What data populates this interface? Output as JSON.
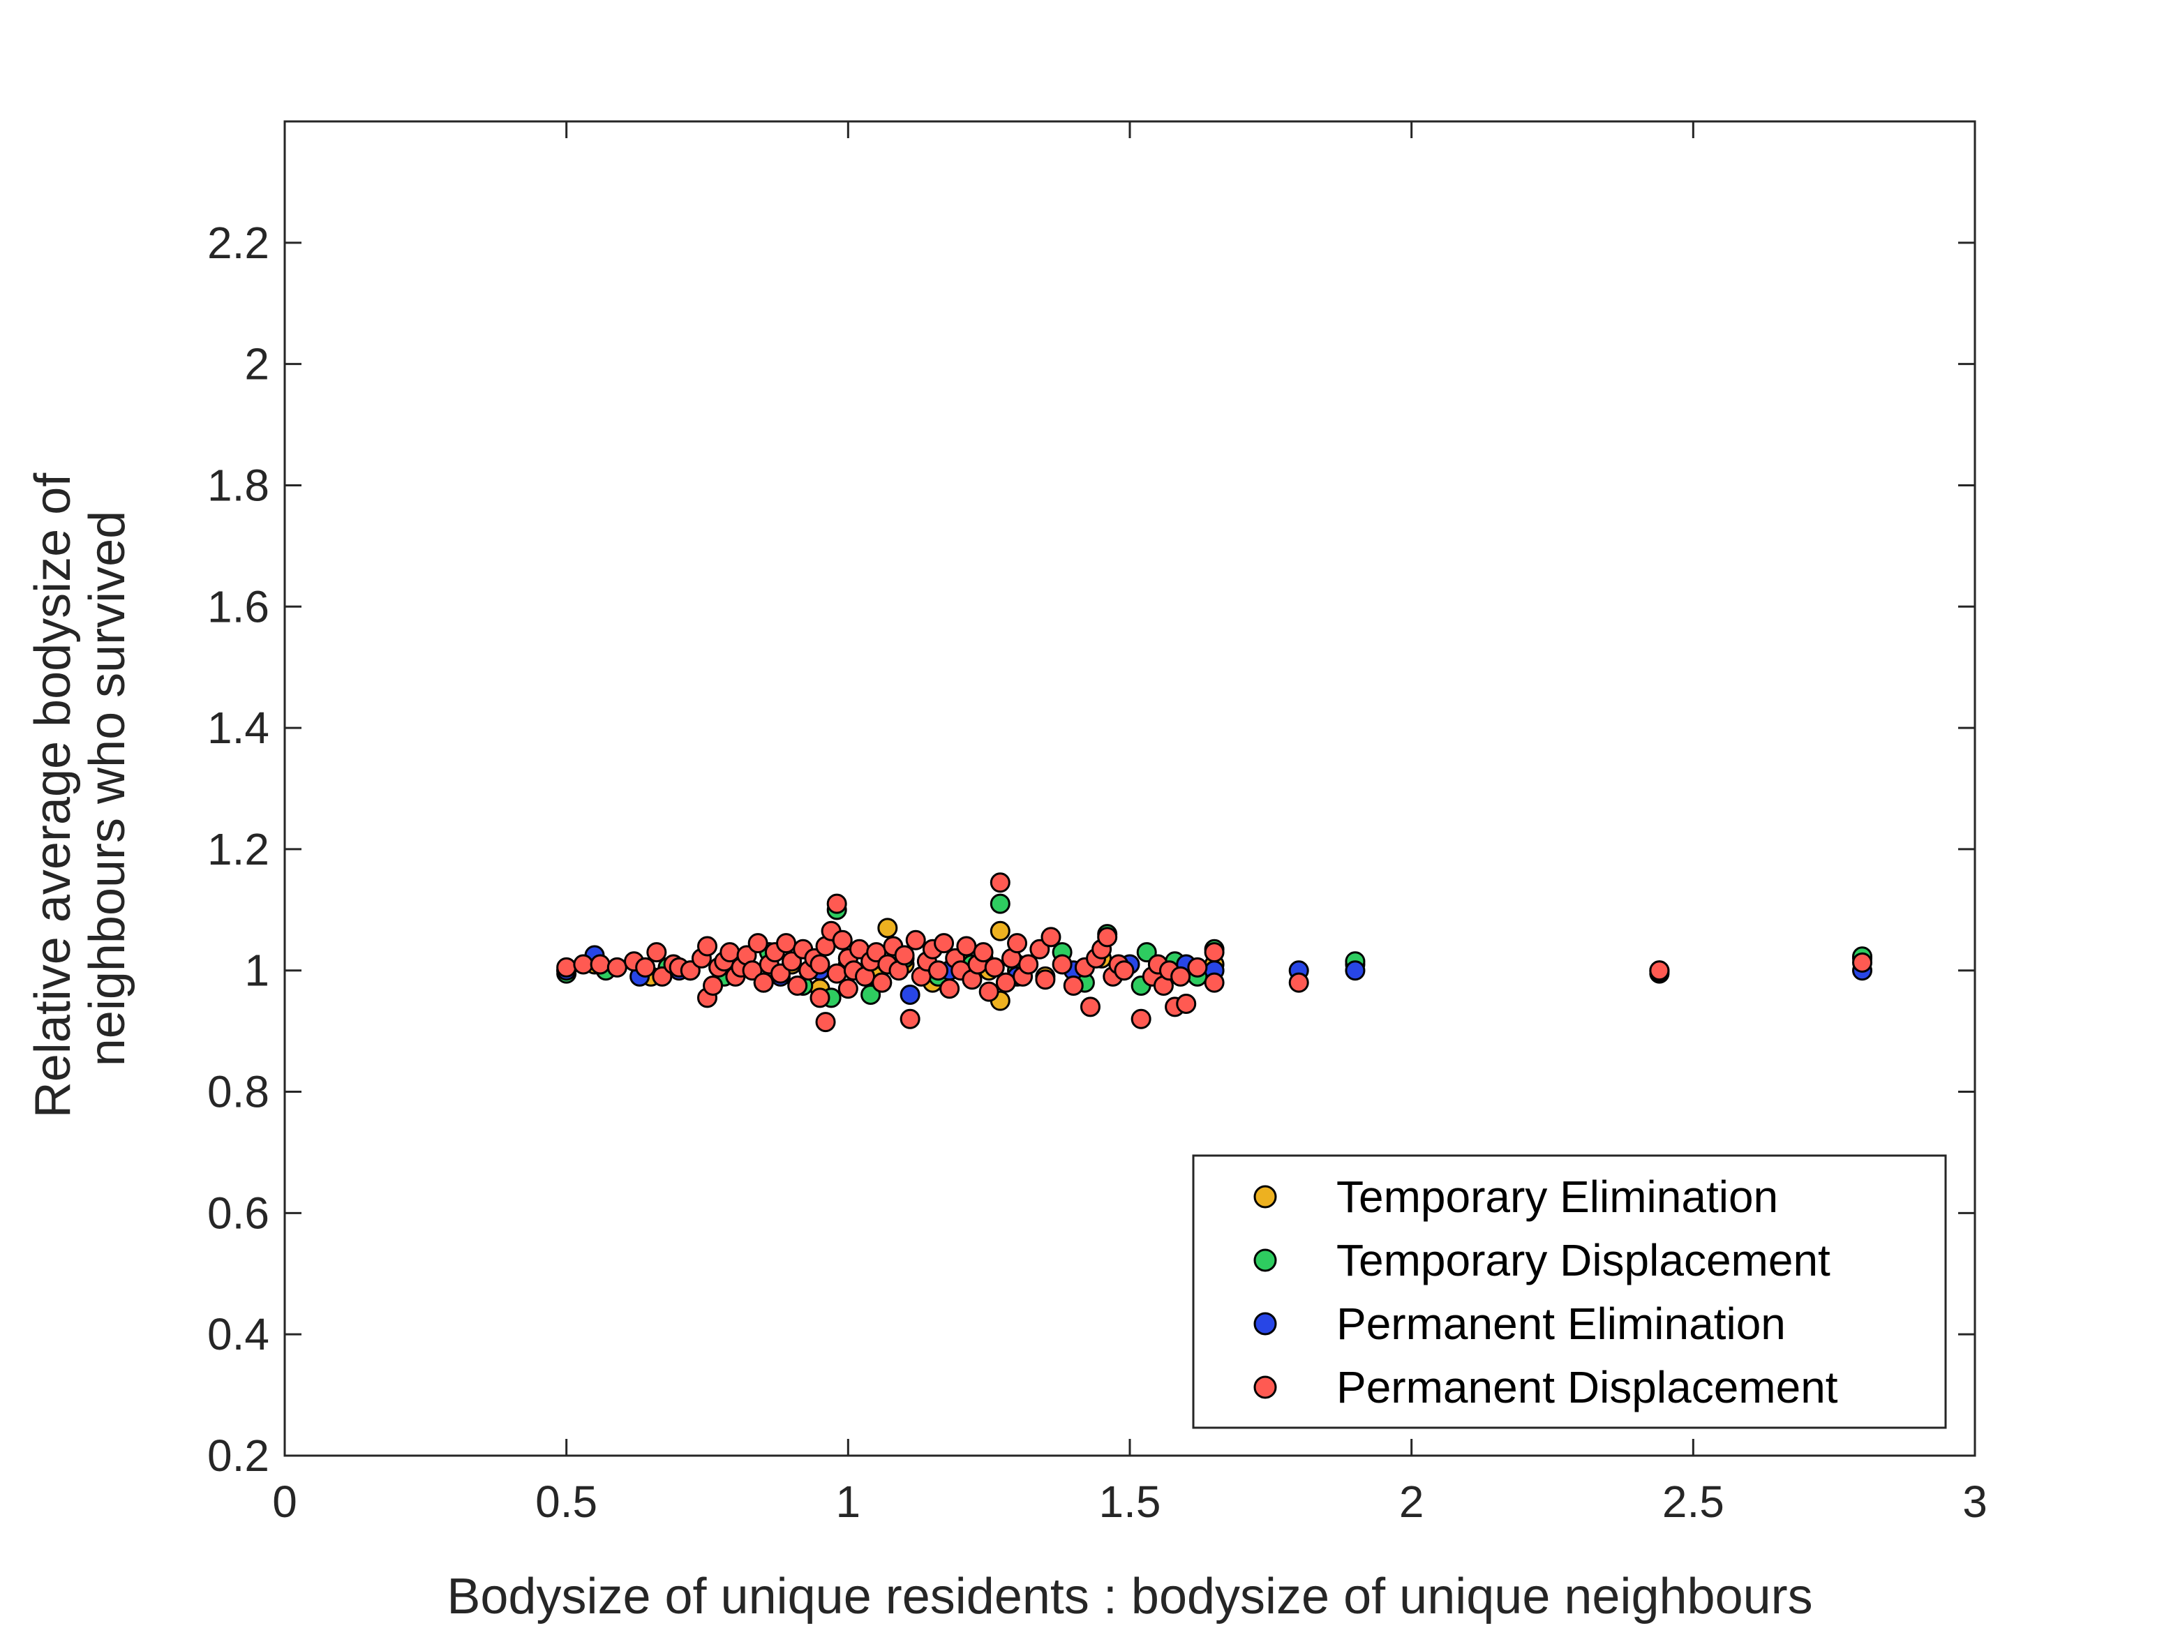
{
  "chart_data": {
    "type": "scatter",
    "title": "",
    "xlabel": "Bodysize of unique residents : bodysize of unique neighbours",
    "ylabel_lines": [
      "Relative average bodysize of",
      "neighbours who survived"
    ],
    "xlim": [
      0,
      3
    ],
    "ylim": [
      0.2,
      2.4
    ],
    "xticks": [
      0,
      0.5,
      1,
      1.5,
      2,
      2.5,
      3
    ],
    "xtick_labels": [
      "0",
      "0.5",
      "1",
      "1.5",
      "2",
      "2.5",
      "3"
    ],
    "yticks": [
      0.2,
      0.4,
      0.6,
      0.8,
      1,
      1.2,
      1.4,
      1.6,
      1.8,
      2,
      2.2
    ],
    "ytick_labels": [
      "0.2",
      "0.4",
      "0.6",
      "0.8",
      "1",
      "1.2",
      "1.4",
      "1.6",
      "1.8",
      "2",
      "2.2"
    ],
    "grid": false,
    "legend_position": "bottom-right",
    "series": [
      {
        "name": "Temporary Elimination",
        "color": "#EDB120",
        "points": [
          [
            0.5,
            1.0
          ],
          [
            0.55,
            1.01
          ],
          [
            0.65,
            0.99
          ],
          [
            0.72,
            1.0
          ],
          [
            0.8,
            1.02
          ],
          [
            0.85,
            0.98
          ],
          [
            0.9,
            1.01
          ],
          [
            0.95,
            0.97
          ],
          [
            1.0,
            1.02
          ],
          [
            1.05,
            0.99
          ],
          [
            1.07,
            1.07
          ],
          [
            1.1,
            1.01
          ],
          [
            1.15,
            0.98
          ],
          [
            1.2,
            1.02
          ],
          [
            1.25,
            1.0
          ],
          [
            1.27,
            1.065
          ],
          [
            1.27,
            0.95
          ],
          [
            1.3,
            1.01
          ],
          [
            1.35,
            0.99
          ],
          [
            1.45,
            1.02
          ],
          [
            1.55,
            1.0
          ],
          [
            1.65,
            1.01
          ],
          [
            1.9,
            1.01
          ],
          [
            2.44,
            0.995
          ],
          [
            2.8,
            1.02
          ]
        ]
      },
      {
        "name": "Temporary Displacement",
        "color": "#2ECC60",
        "points": [
          [
            0.5,
            0.995
          ],
          [
            0.57,
            1.0
          ],
          [
            0.68,
            1.005
          ],
          [
            0.78,
            0.99
          ],
          [
            0.86,
            1.03
          ],
          [
            0.92,
            0.975
          ],
          [
            0.97,
            0.955
          ],
          [
            0.98,
            1.1
          ],
          [
            1.0,
            1.005
          ],
          [
            1.04,
            0.96
          ],
          [
            1.1,
            1.02
          ],
          [
            1.16,
            0.99
          ],
          [
            1.22,
            1.01
          ],
          [
            1.27,
            1.11
          ],
          [
            1.3,
            1.0
          ],
          [
            1.38,
            1.03
          ],
          [
            1.42,
            0.98
          ],
          [
            1.46,
            1.06
          ],
          [
            1.52,
            0.975
          ],
          [
            1.53,
            1.03
          ],
          [
            1.58,
            1.015
          ],
          [
            1.62,
            0.99
          ],
          [
            1.65,
            1.035
          ],
          [
            1.9,
            1.015
          ],
          [
            2.44,
            0.998
          ],
          [
            2.8,
            1.023
          ]
        ]
      },
      {
        "name": "Permanent Elimination",
        "color": "#2846E6",
        "points": [
          [
            0.5,
            1.0
          ],
          [
            0.55,
            1.025
          ],
          [
            0.63,
            0.99
          ],
          [
            0.7,
            1.0
          ],
          [
            0.8,
            1.01
          ],
          [
            0.88,
            0.99
          ],
          [
            0.95,
            1.0
          ],
          [
            1.0,
            1.01
          ],
          [
            1.06,
            0.98
          ],
          [
            1.11,
            0.96
          ],
          [
            1.18,
            1.0
          ],
          [
            1.24,
            1.02
          ],
          [
            1.3,
            0.99
          ],
          [
            1.4,
            1.0
          ],
          [
            1.5,
            1.01
          ],
          [
            1.55,
            0.995
          ],
          [
            1.6,
            1.01
          ],
          [
            1.65,
            1.0
          ],
          [
            1.8,
            1.0
          ],
          [
            1.9,
            1.0
          ],
          [
            2.44,
            1.0
          ],
          [
            2.8,
            1.0
          ]
        ]
      },
      {
        "name": "Permanent Displacement",
        "color": "#FF5A52",
        "points": [
          [
            0.5,
            1.005
          ],
          [
            0.53,
            1.01
          ],
          [
            0.56,
            1.01
          ],
          [
            0.59,
            1.005
          ],
          [
            0.62,
            1.015
          ],
          [
            0.64,
            1.005
          ],
          [
            0.66,
            1.03
          ],
          [
            0.67,
            0.99
          ],
          [
            0.69,
            1.01
          ],
          [
            0.7,
            1.005
          ],
          [
            0.72,
            1.0
          ],
          [
            0.74,
            1.02
          ],
          [
            0.75,
            0.955
          ],
          [
            0.75,
            1.04
          ],
          [
            0.76,
            0.975
          ],
          [
            0.77,
            1.005
          ],
          [
            0.78,
            1.015
          ],
          [
            0.79,
            1.03
          ],
          [
            0.8,
            0.99
          ],
          [
            0.81,
            1.005
          ],
          [
            0.82,
            1.025
          ],
          [
            0.83,
            1.0
          ],
          [
            0.84,
            1.045
          ],
          [
            0.85,
            0.98
          ],
          [
            0.86,
            1.01
          ],
          [
            0.87,
            1.03
          ],
          [
            0.88,
            0.995
          ],
          [
            0.89,
            1.045
          ],
          [
            0.9,
            1.015
          ],
          [
            0.91,
            0.975
          ],
          [
            0.92,
            1.035
          ],
          [
            0.93,
            1.0
          ],
          [
            0.94,
            1.02
          ],
          [
            0.95,
            0.955
          ],
          [
            0.95,
            1.01
          ],
          [
            0.96,
            1.04
          ],
          [
            0.96,
            0.915
          ],
          [
            0.97,
            1.065
          ],
          [
            0.98,
            1.11
          ],
          [
            0.98,
            0.995
          ],
          [
            0.99,
            1.05
          ],
          [
            1.0,
            0.97
          ],
          [
            1.0,
            1.02
          ],
          [
            1.01,
            1.0
          ],
          [
            1.02,
            1.035
          ],
          [
            1.03,
            0.99
          ],
          [
            1.04,
            1.015
          ],
          [
            1.05,
            1.03
          ],
          [
            1.06,
            0.98
          ],
          [
            1.07,
            1.01
          ],
          [
            1.08,
            1.04
          ],
          [
            1.09,
            1.0
          ],
          [
            1.1,
            1.025
          ],
          [
            1.11,
            0.92
          ],
          [
            1.12,
            1.05
          ],
          [
            1.13,
            0.99
          ],
          [
            1.14,
            1.015
          ],
          [
            1.15,
            1.035
          ],
          [
            1.16,
            1.0
          ],
          [
            1.17,
            1.045
          ],
          [
            1.18,
            0.97
          ],
          [
            1.19,
            1.02
          ],
          [
            1.2,
            1.0
          ],
          [
            1.21,
            1.04
          ],
          [
            1.22,
            0.985
          ],
          [
            1.23,
            1.01
          ],
          [
            1.24,
            1.03
          ],
          [
            1.25,
            0.965
          ],
          [
            1.26,
            1.005
          ],
          [
            1.27,
            1.145
          ],
          [
            1.28,
            0.98
          ],
          [
            1.29,
            1.02
          ],
          [
            1.3,
            1.045
          ],
          [
            1.31,
            0.99
          ],
          [
            1.32,
            1.01
          ],
          [
            1.34,
            1.035
          ],
          [
            1.35,
            0.985
          ],
          [
            1.36,
            1.055
          ],
          [
            1.38,
            1.01
          ],
          [
            1.4,
            0.975
          ],
          [
            1.42,
            1.005
          ],
          [
            1.43,
            0.94
          ],
          [
            1.44,
            1.02
          ],
          [
            1.45,
            1.035
          ],
          [
            1.46,
            1.055
          ],
          [
            1.47,
            0.99
          ],
          [
            1.48,
            1.01
          ],
          [
            1.49,
            1.0
          ],
          [
            1.52,
            0.92
          ],
          [
            1.54,
            0.99
          ],
          [
            1.55,
            1.01
          ],
          [
            1.56,
            0.975
          ],
          [
            1.57,
            1.0
          ],
          [
            1.58,
            0.94
          ],
          [
            1.59,
            0.99
          ],
          [
            1.6,
            0.945
          ],
          [
            1.62,
            1.005
          ],
          [
            1.65,
            1.03
          ],
          [
            1.65,
            0.98
          ],
          [
            1.8,
            0.98
          ],
          [
            2.44,
            1.0
          ],
          [
            2.8,
            1.013
          ]
        ]
      }
    ]
  }
}
